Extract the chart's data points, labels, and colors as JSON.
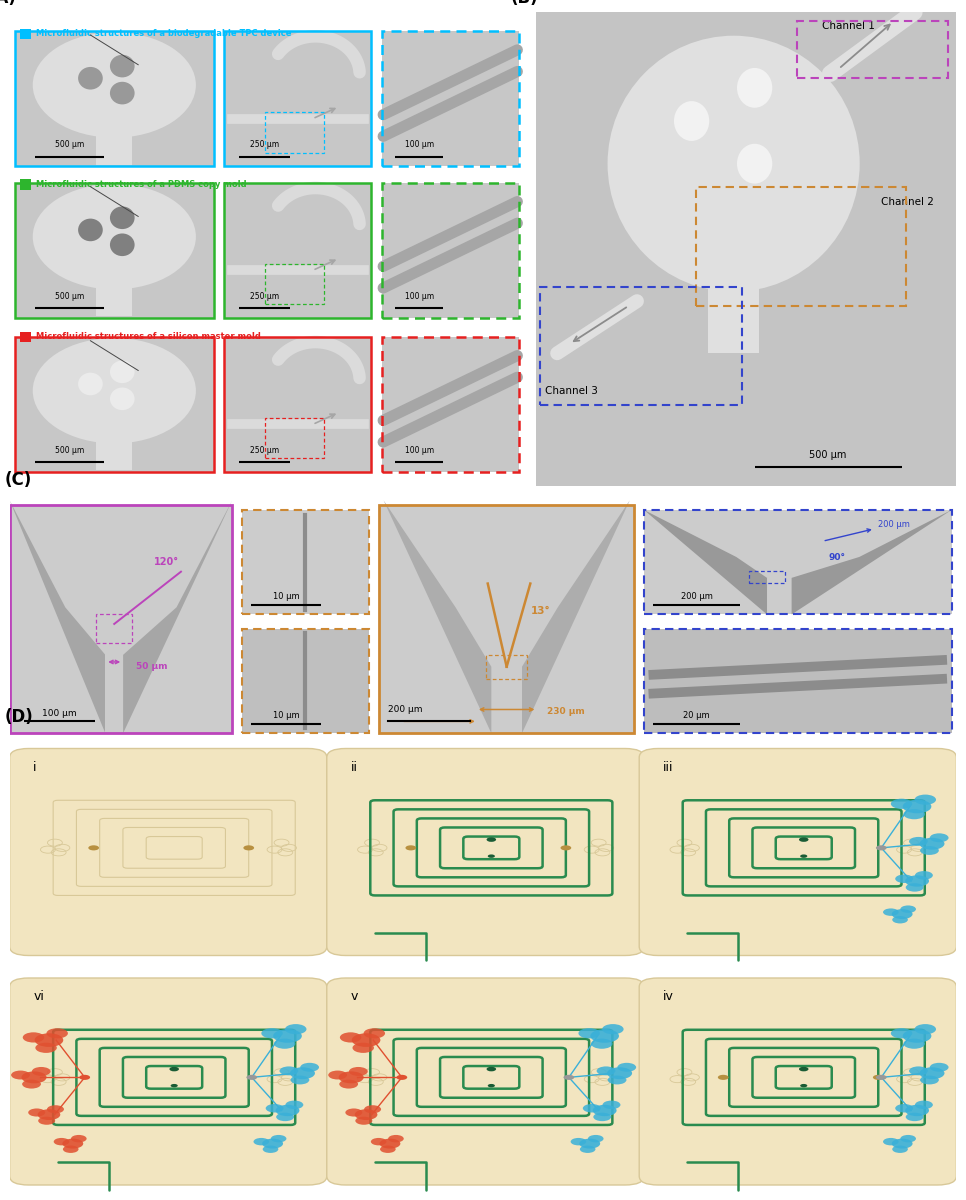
{
  "fig_width": 9.66,
  "fig_height": 12.0,
  "bg_color": "#ffffff",
  "section_A": {
    "labels": [
      "Microfluidic structures of a silicon master mold",
      "Microfluidic structures of a PDMS copy mold",
      "Microfluidic structures of a biodegradable TPC device"
    ],
    "colors": [
      "#e62020",
      "#2db52d",
      "#00bfff"
    ],
    "scale_bars": [
      [
        "500 μm",
        "250 μm",
        "100 μm"
      ],
      [
        "500 μm",
        "250 μm",
        "100 μm"
      ],
      [
        "500 μm",
        "250 μm",
        "100 μm"
      ]
    ]
  },
  "section_B": {
    "channel_labels": [
      "Channel 1",
      "Channel 2",
      "Channel 3"
    ],
    "box_colors": [
      "#bb44bb",
      "#cc8833",
      "#3344cc"
    ],
    "scale_bar": "500 μm"
  },
  "section_C": {
    "magenta": "#bb44bb",
    "orange": "#cc8833",
    "blue": "#3344cc",
    "annotations": {
      "angle1": "120°",
      "dist1": "50 μm",
      "scale1": "100 μm",
      "angle3": "13°",
      "width3": "230 μm",
      "scale3": "200 μm",
      "scale2a": "10 μm",
      "scale2b": "10 μm",
      "angle4": "90°",
      "dist4": "200 μm",
      "scale4a": "200 μm",
      "scale4b": "20 μm"
    }
  },
  "section_D": {
    "bg_oval": "#f2e5c0",
    "bg_outline": "#d8c898",
    "spiral_color": "#2a8b4f",
    "red_gland": "#e05030",
    "blue_gland": "#3ab0d8",
    "tan_dot": "#b89040",
    "gray_dot": "#999999",
    "dark_green_dot": "#1a5c35",
    "labels": [
      "i",
      "ii",
      "iii",
      "vi",
      "v",
      "iv"
    ],
    "show_spiral": [
      false,
      true,
      true,
      true,
      true,
      true
    ],
    "show_red": [
      false,
      false,
      false,
      true,
      true,
      false
    ],
    "show_blue": [
      false,
      false,
      true,
      true,
      true,
      true
    ],
    "show_tan_dots": [
      true,
      true,
      true,
      false,
      false,
      true
    ],
    "outlet_line": [
      false,
      true,
      true,
      true,
      true,
      true
    ]
  }
}
